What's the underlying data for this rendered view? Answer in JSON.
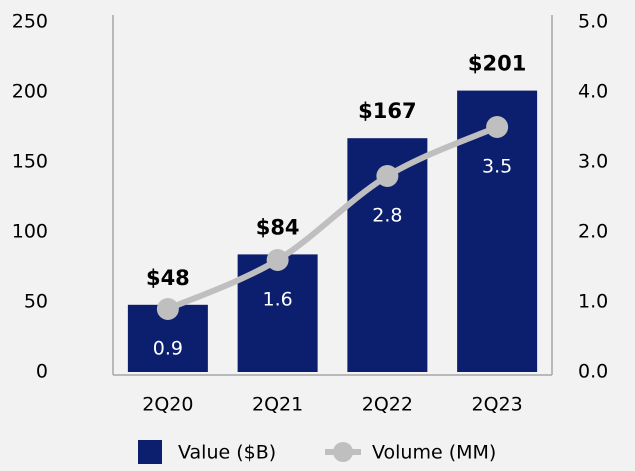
{
  "chart_data": {
    "type": "bar",
    "categories": [
      "2Q20",
      "2Q21",
      "2Q22",
      "2Q23"
    ],
    "series": [
      {
        "name": "Value ($B)",
        "color": "#0c1f6e",
        "values": [
          48,
          84,
          167,
          201
        ],
        "value_labels": [
          "$48",
          "$84",
          "$167",
          "$201"
        ]
      },
      {
        "name": "Volume (MM)",
        "color": "#bfbfbf",
        "type": "line",
        "axis": "y2",
        "values": [
          0.9,
          1.6,
          2.8,
          3.5
        ]
      }
    ],
    "ylim": [
      0,
      250
    ],
    "yticks": [
      0,
      50,
      100,
      150,
      200,
      250
    ],
    "y2lim": [
      0,
      5
    ],
    "y2ticks": [
      {
        "value": 0,
        "label": "0.0"
      },
      {
        "value": 1,
        "label": "1.0"
      },
      {
        "value": 2,
        "label": "2.0"
      },
      {
        "value": 3,
        "label": "3.0"
      },
      {
        "value": 4,
        "label": "4.0"
      },
      {
        "value": 5,
        "label": "5.0"
      }
    ],
    "grid": false,
    "legend": "bottom"
  }
}
